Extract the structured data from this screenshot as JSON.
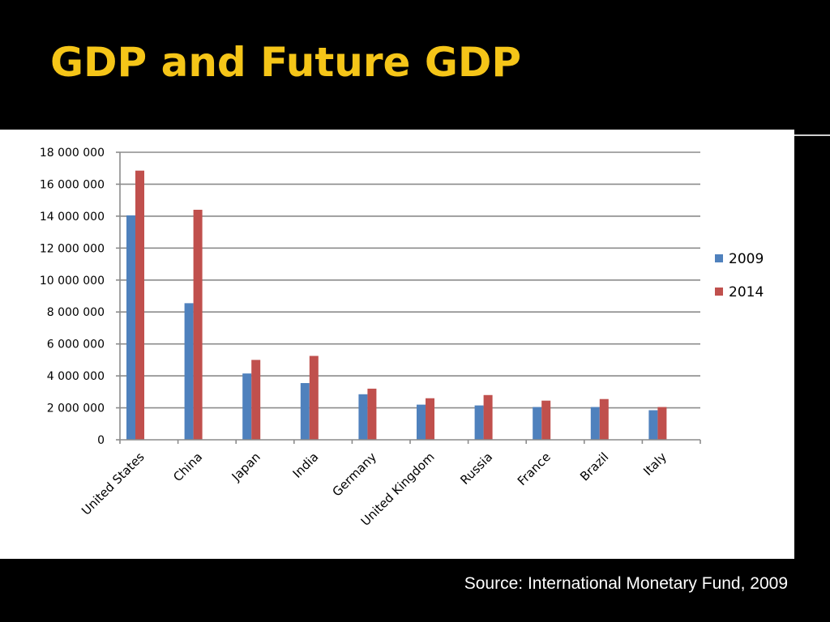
{
  "slide": {
    "title": "GDP and Future GDP",
    "source": "Source: International Monetary Fund, 2009"
  },
  "colors": {
    "background": "#000000",
    "title": "#f5c518",
    "series_2009": "#4f81bd",
    "series_2014": "#c0504d",
    "grid": "#8c8c8c"
  },
  "chart_data": {
    "type": "bar",
    "title": "",
    "xlabel": "",
    "ylabel": "",
    "ylim": [
      0,
      18000000
    ],
    "yticks": [
      0,
      2000000,
      4000000,
      6000000,
      8000000,
      10000000,
      12000000,
      14000000,
      16000000,
      18000000
    ],
    "ytick_labels": [
      "0",
      "2 000 000",
      "4 000 000",
      "6 000 000",
      "8 000 000",
      "10 000 000",
      "12 000 000",
      "14 000 000",
      "16 000 000",
      "18 000 000"
    ],
    "grid": true,
    "legend_position": "right",
    "categories": [
      "United States",
      "China",
      "Japan",
      "India",
      "Germany",
      "United Kingdom",
      "Russia",
      "France",
      "Brazil",
      "Italy"
    ],
    "series": [
      {
        "name": "2009",
        "color": "#4f81bd",
        "values": [
          14050000,
          8550000,
          4150000,
          3550000,
          2850000,
          2200000,
          2150000,
          2050000,
          2050000,
          1850000
        ]
      },
      {
        "name": "2014",
        "color": "#c0504d",
        "values": [
          16850000,
          14400000,
          5000000,
          5250000,
          3200000,
          2600000,
          2800000,
          2450000,
          2550000,
          2050000
        ]
      }
    ]
  }
}
